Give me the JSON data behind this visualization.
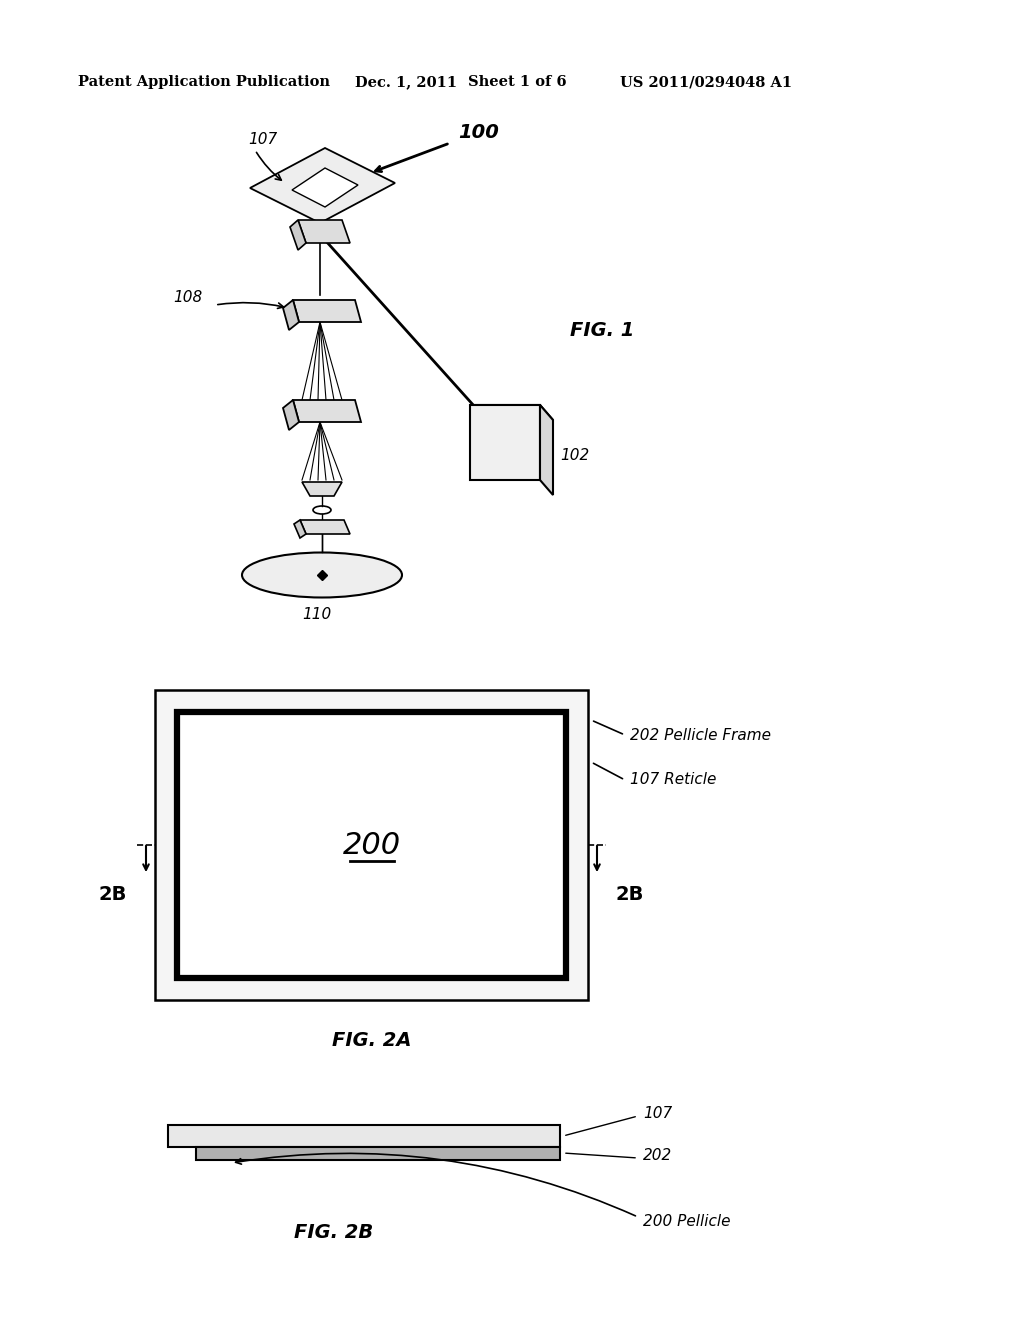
{
  "bg_color": "#ffffff",
  "header_text": "Patent Application Publication",
  "header_date": "Dec. 1, 2011",
  "header_sheet": "Sheet 1 of 6",
  "header_patent": "US 2011/0294048 A1",
  "fig1_label": "FIG. 1",
  "fig2a_label": "FIG. 2A",
  "fig2b_label": "FIG. 2B",
  "label_100": "100",
  "label_102": "102",
  "label_107": "107",
  "label_108": "108",
  "label_110": "110",
  "label_200": "200",
  "label_202": "202",
  "label_202_pellicle_frame": "202 Pellicle Frame",
  "label_107_reticle": "107 Reticle",
  "label_200_pellicle": "200 Pellicle",
  "label_2B_left": "2B",
  "label_2B_right": "2B"
}
